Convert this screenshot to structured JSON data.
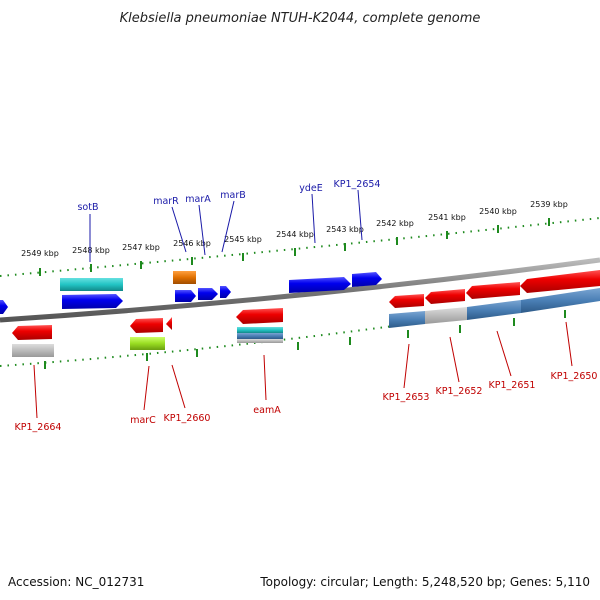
{
  "title": "Klebsiella pneumoniae NTUH-K2044, complete genome",
  "accession": "Accession: NC_012731",
  "topology": "Topology: circular; Length: 5,248,520 bp; Genes: 5,110",
  "ticks": [
    "2549 kbp",
    "2548 kbp",
    "2547 kbp",
    "2546 kbp",
    "2545 kbp",
    "2544 kbp",
    "2543 kbp",
    "2542 kbp",
    "2541 kbp",
    "2540 kbp",
    "2539 kbp"
  ],
  "genes_top": [
    "sotB",
    "marR",
    "marA",
    "marB",
    "ydeE",
    "KP1_2654"
  ],
  "genes_bottom": [
    "KP1_2664",
    "marC",
    "KP1_2660",
    "eamA",
    "KP1_2653",
    "KP1_2652",
    "KP1_2651",
    "KP1_2650"
  ],
  "colors": {
    "cds": "#0000ee",
    "cds_rev": "#ee0000",
    "rna": "#22c4c4",
    "pseudo": "#bbbbbb",
    "steelblue": "#4a7fb5",
    "orange": "#e07000",
    "lime": "#99dd22",
    "backbone": "#777777",
    "tick": "#1e8a1e"
  }
}
